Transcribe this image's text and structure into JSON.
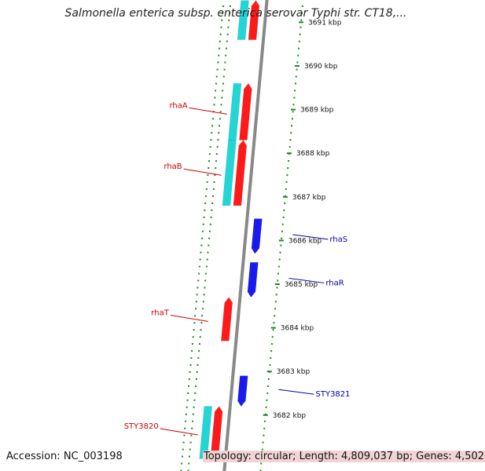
{
  "title": "Salmonella enterica subsp. enterica serovar Typhi str. CT18,...",
  "footer": {
    "accession": "Accession: NC_003198",
    "topology": "Topology: circular; Length: 4,809,037 bp; Genes: 4,502"
  },
  "colors": {
    "cds_forward": "#ff1a1a",
    "cds_reverse": "#1a1aee",
    "rna": "#22d6d6",
    "backbone": "#888888",
    "ticks": "#1a8a1a",
    "label_forward": "#cc0000",
    "label_reverse": "#0000aa"
  },
  "scale": {
    "unit": "kbp",
    "ticks": [
      {
        "label": "3691 kbp",
        "kbp": 3691
      },
      {
        "label": "3690 kbp",
        "kbp": 3690
      },
      {
        "label": "3689 kbp",
        "kbp": 3689
      },
      {
        "label": "3688 kbp",
        "kbp": 3688
      },
      {
        "label": "3687 kbp",
        "kbp": 3687
      },
      {
        "label": "3686 kbp",
        "kbp": 3686
      },
      {
        "label": "3685 kbp",
        "kbp": 3685
      },
      {
        "label": "3684 kbp",
        "kbp": 3684
      },
      {
        "label": "3683 kbp",
        "kbp": 3683
      },
      {
        "label": "3682 kbp",
        "kbp": 3682
      }
    ]
  },
  "features": [
    {
      "name": "",
      "strand": "forward",
      "type": "cds",
      "start_kbp": 3690.6,
      "end_kbp": 3691.5
    },
    {
      "name": "",
      "strand": "forward",
      "type": "rna",
      "start_kbp": 3690.6,
      "end_kbp": 3691.5
    },
    {
      "name": "rhaA",
      "strand": "forward",
      "type": "cds",
      "start_kbp": 3688.3,
      "end_kbp": 3689.6
    },
    {
      "name": "",
      "strand": "forward",
      "type": "rna",
      "start_kbp": 3688.3,
      "end_kbp": 3689.6
    },
    {
      "name": "rhaB",
      "strand": "forward",
      "type": "cds",
      "start_kbp": 3686.8,
      "end_kbp": 3688.3
    },
    {
      "name": "",
      "strand": "forward",
      "type": "rna",
      "start_kbp": 3686.8,
      "end_kbp": 3688.3
    },
    {
      "name": "rhaS",
      "strand": "reverse",
      "type": "cds",
      "start_kbp": 3685.7,
      "end_kbp": 3686.5
    },
    {
      "name": "rhaR",
      "strand": "reverse",
      "type": "cds",
      "start_kbp": 3684.7,
      "end_kbp": 3685.5
    },
    {
      "name": "rhaT",
      "strand": "forward",
      "type": "cds",
      "start_kbp": 3683.7,
      "end_kbp": 3684.7
    },
    {
      "name": "STY3821",
      "strand": "reverse",
      "type": "cds",
      "start_kbp": 3682.2,
      "end_kbp": 3682.9
    },
    {
      "name": "STY3820",
      "strand": "forward",
      "type": "cds",
      "start_kbp": 3681.0,
      "end_kbp": 3682.2
    },
    {
      "name": "",
      "strand": "forward",
      "type": "rna",
      "start_kbp": 3681.0,
      "end_kbp": 3682.2
    }
  ]
}
